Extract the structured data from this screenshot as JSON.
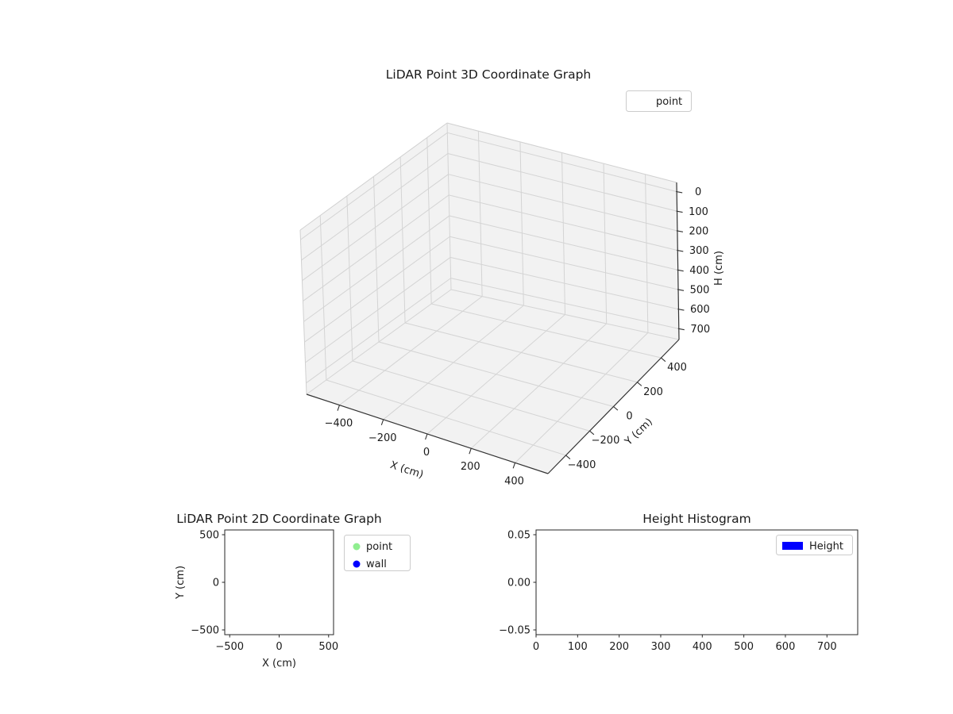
{
  "figure": {
    "background": "#ffffff"
  },
  "chart_data": [
    {
      "id": "lidar-3d",
      "type": "scatter3d",
      "title": "LiDAR Point 3D Coordinate Graph",
      "xlabel": "X (cm)",
      "ylabel": "Y (cm)",
      "zlabel": "H (cm)",
      "xticks": [
        "-400",
        "-200",
        "0",
        "200",
        "400"
      ],
      "yticks": [
        "-400",
        "-200",
        "0",
        "200",
        "400"
      ],
      "zticks": [
        "0",
        "100",
        "200",
        "300",
        "400",
        "500",
        "600",
        "700"
      ],
      "xlim": [
        -550,
        550
      ],
      "ylim": [
        -550,
        550
      ],
      "zlim": [
        -47,
        755
      ],
      "z_axis_inverted": true,
      "grid": true,
      "legend": {
        "position": "upper right",
        "entries": [
          {
            "label": "point",
            "marker": "circle",
            "color": "#ffffff"
          }
        ]
      },
      "series": [
        {
          "name": "point",
          "points": []
        }
      ]
    },
    {
      "id": "lidar-2d",
      "type": "scatter",
      "title": "LiDAR Point 2D Coordinate Graph",
      "xlabel": "X (cm)",
      "ylabel": "Y (cm)",
      "xticks": [
        "-500",
        "0",
        "500"
      ],
      "yticks": [
        "-500",
        "0",
        "500"
      ],
      "xlim": [
        -550,
        550
      ],
      "ylim": [
        -550,
        550
      ],
      "grid": false,
      "legend": {
        "position": "outside upper right",
        "entries": [
          {
            "label": "point",
            "marker": "circle",
            "color": "#90ee90"
          },
          {
            "label": "wall",
            "marker": "circle",
            "color": "#0000ff"
          }
        ]
      },
      "series": [
        {
          "name": "point",
          "points": []
        },
        {
          "name": "wall",
          "points": []
        }
      ]
    },
    {
      "id": "height-histogram",
      "type": "bar",
      "title": "Height Histogram",
      "xlabel": "",
      "ylabel": "",
      "xticks": [
        "0",
        "100",
        "200",
        "300",
        "400",
        "500",
        "600",
        "700"
      ],
      "yticks": [
        "-0.05",
        "0.00",
        "0.05"
      ],
      "xlim": [
        0,
        774
      ],
      "ylim": [
        -0.055,
        0.055
      ],
      "grid": false,
      "legend": {
        "position": "upper right",
        "entries": [
          {
            "label": "Height",
            "marker": "rect",
            "color": "#0000ff"
          }
        ]
      },
      "values": []
    }
  ]
}
